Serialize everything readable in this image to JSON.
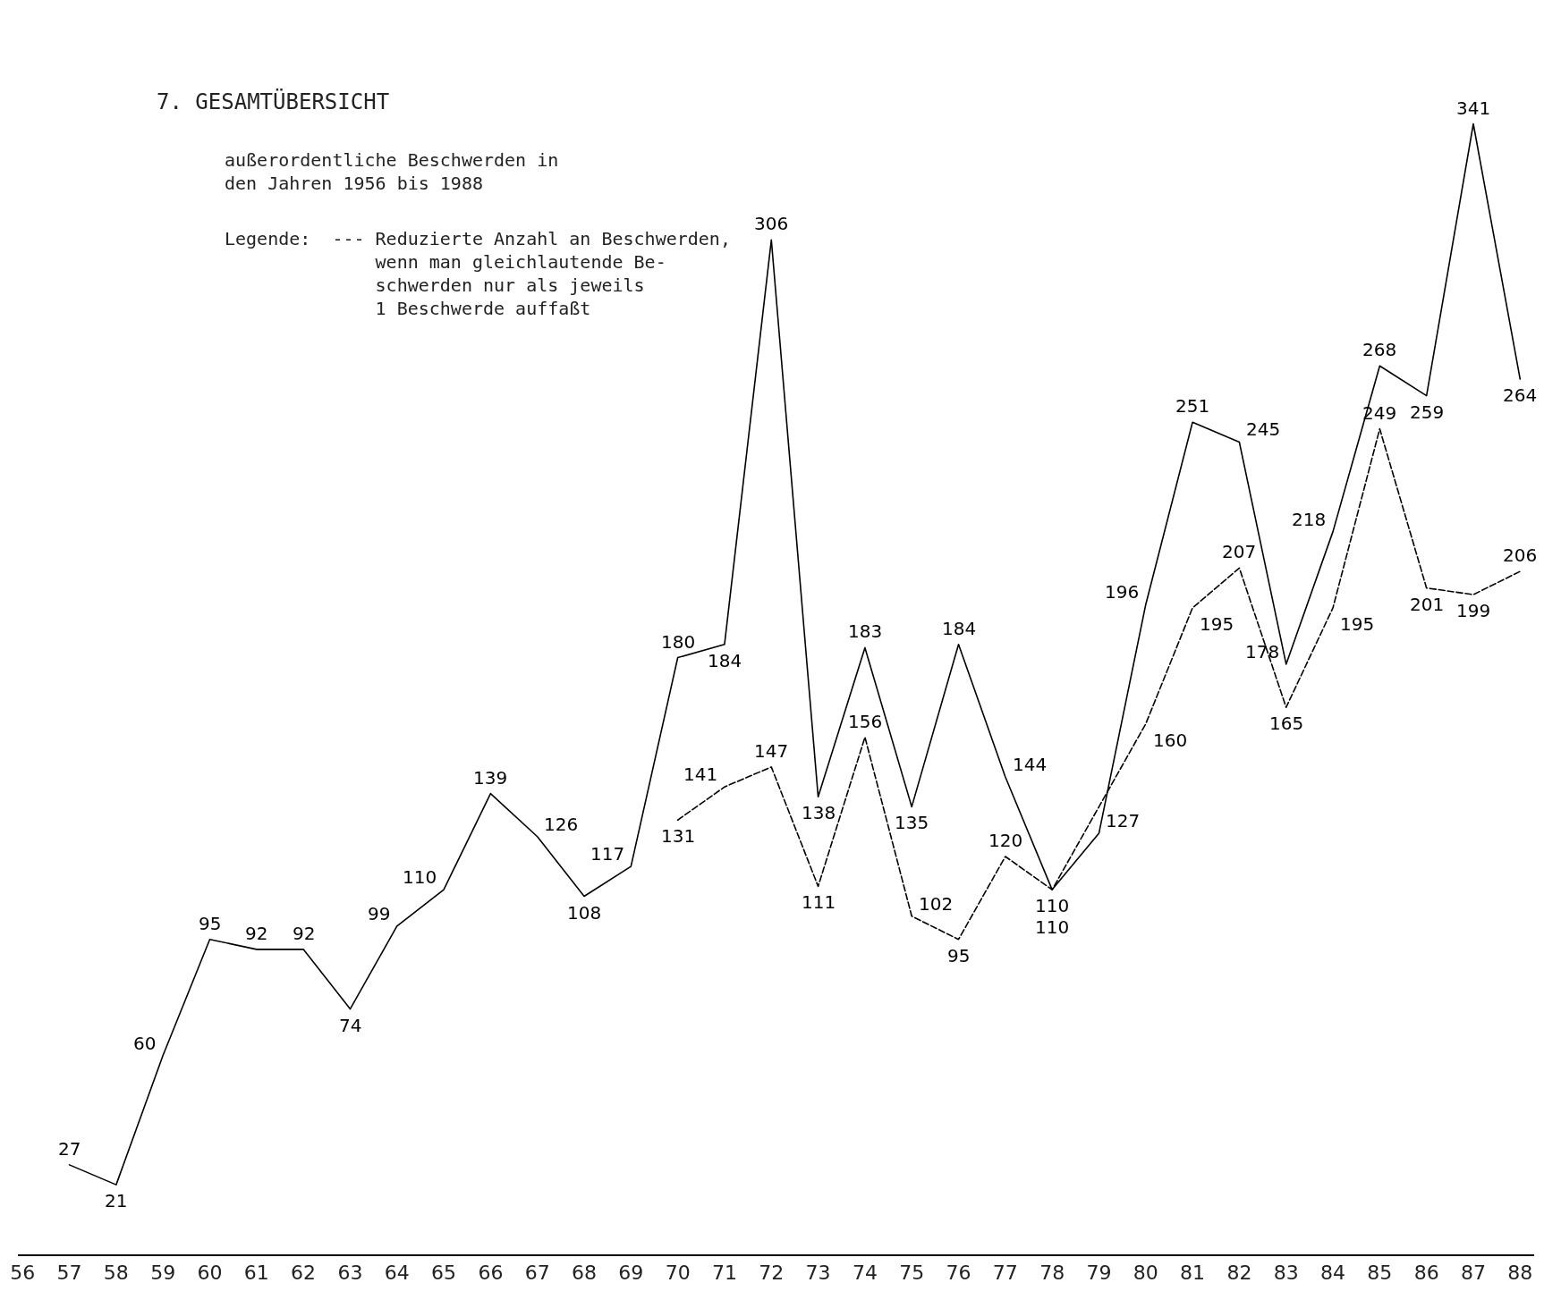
{
  "chart_data": {
    "type": "line",
    "title": "7. GESAMTÜBERSICHT",
    "subtitle": "außerordentliche Beschwerden in\nden Jahren 1956 bis 1988",
    "annotations": [
      "Legende:  --- Reduzierte Anzahl an Beschwerden,\n              wenn man gleichlautende Be-\n              schwerden nur als jeweils\n              1 Beschwerde auffaßt"
    ],
    "categories": [
      "56",
      "57",
      "58",
      "59",
      "60",
      "61",
      "62",
      "63",
      "64",
      "65",
      "66",
      "67",
      "68",
      "69",
      "70",
      "71",
      "72",
      "73",
      "74",
      "75",
      "76",
      "77",
      "78",
      "79",
      "80",
      "81",
      "82",
      "83",
      "84",
      "85",
      "86",
      "87",
      "88"
    ],
    "series": [
      {
        "color": "#000000",
        "line_style": "solid",
        "values": [
          null,
          27,
          21,
          60,
          95,
          92,
          92,
          74,
          99,
          110,
          139,
          126,
          108,
          117,
          180,
          184,
          306,
          138,
          183,
          135,
          184,
          144,
          110,
          127,
          196,
          251,
          245,
          178,
          218,
          268,
          259,
          341,
          264
        ]
      },
      {
        "color": "#000000",
        "line_style": "dashed",
        "values": [
          null,
          null,
          null,
          null,
          null,
          null,
          null,
          null,
          null,
          null,
          null,
          null,
          null,
          null,
          131,
          141,
          147,
          111,
          156,
          102,
          95,
          120,
          110,
          null,
          160,
          195,
          207,
          165,
          195,
          249,
          201,
          199,
          206
        ]
      }
    ],
    "data_labels": true,
    "marker": "none",
    "tick_labels": "x"
  }
}
